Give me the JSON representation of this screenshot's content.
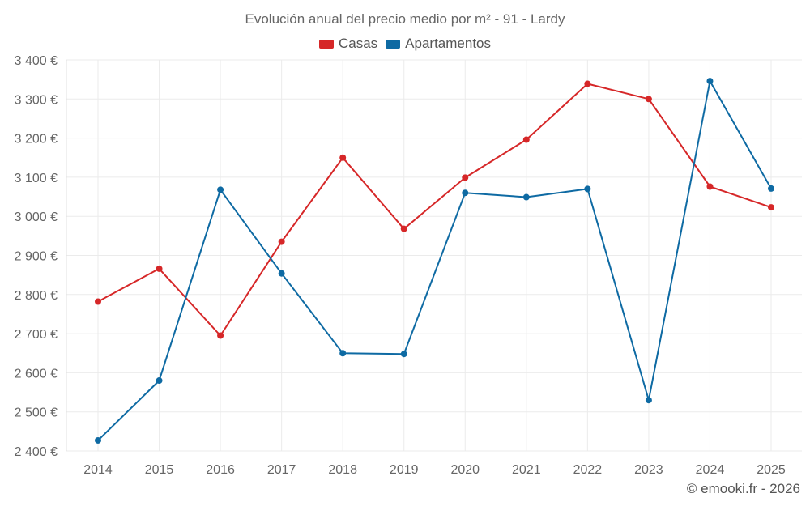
{
  "chart_data": {
    "type": "line",
    "title": "Evolución anual del precio medio por m² - 91 - Lardy",
    "categories": [
      "2014",
      "2015",
      "2016",
      "2017",
      "2018",
      "2019",
      "2020",
      "2021",
      "2022",
      "2023",
      "2024",
      "2025"
    ],
    "series": [
      {
        "name": "Casas",
        "color": "#d62728",
        "values": [
          2782,
          2866,
          2695,
          2935,
          3150,
          2968,
          3099,
          3196,
          3339,
          3300,
          3076,
          3023
        ]
      },
      {
        "name": "Apartamentos",
        "color": "#0e6aa3",
        "values": [
          2427,
          2580,
          3068,
          2854,
          2650,
          2648,
          3060,
          3049,
          3070,
          2530,
          3346,
          3071
        ]
      }
    ],
    "ylim": [
      2400,
      3400
    ],
    "yticks": [
      2400,
      2500,
      2600,
      2700,
      2800,
      2900,
      3000,
      3100,
      3200,
      3300,
      3400
    ],
    "ytick_labels": [
      "2 400 €",
      "2 500 €",
      "2 600 €",
      "2 700 €",
      "2 800 €",
      "2 900 €",
      "3 000 €",
      "3 100 €",
      "3 200 €",
      "3 300 €",
      "3 400 €"
    ],
    "xlabel": "",
    "ylabel": "",
    "grid": true,
    "legend_position": "top-center"
  },
  "footer": {
    "credit": "© emooki.fr - 2026"
  }
}
